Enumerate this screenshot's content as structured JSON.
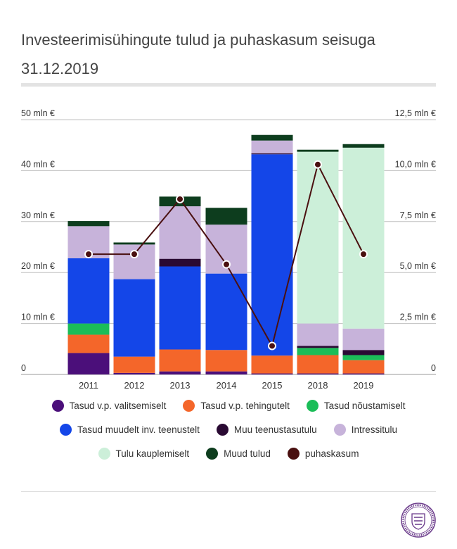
{
  "title": "Investeerimisühingute tulud ja puhaskasum seisuga 31.12.2019",
  "chart_data": {
    "type": "bar",
    "stacked": true,
    "categories": [
      "2011",
      "2012",
      "2013",
      "2014",
      "2015",
      "2018",
      "2019"
    ],
    "y_left": {
      "ticks": [
        "0",
        "10 mln €",
        "20 mln €",
        "30 mln €",
        "40 mln €",
        "50 mln €"
      ],
      "ylim": [
        0,
        50
      ]
    },
    "y_right": {
      "ticks": [
        "0",
        "2,5 mln €",
        "5,0 mln €",
        "7,5 mln €",
        "10,0 mln €",
        "12,5 mln €"
      ],
      "ylim": [
        0,
        12.5
      ]
    },
    "grid": true,
    "legend_position": "bottom",
    "series": [
      {
        "name": "Tasud v.p. valitsemiselt",
        "color": "#4b0f7a",
        "values": [
          4.2,
          0.3,
          0.6,
          0.6,
          0.2,
          0.2,
          0.2
        ]
      },
      {
        "name": "Tasud v.p. tehingutelt",
        "color": "#f4662a",
        "values": [
          3.6,
          3.2,
          4.3,
          4.2,
          3.5,
          3.6,
          2.6
        ]
      },
      {
        "name": "Tasud nõustamiselt",
        "color": "#1bbd58",
        "values": [
          2.2,
          0.0,
          0.0,
          0.0,
          0.0,
          1.4,
          1.0
        ]
      },
      {
        "name": "Tasud muudelt inv. teenustelt",
        "color": "#1446e8",
        "values": [
          12.8,
          15.2,
          16.3,
          15.0,
          39.5,
          0.0,
          0.0
        ]
      },
      {
        "name": "Muu teenustasutulu",
        "color": "#2a0a33",
        "values": [
          0.0,
          0.0,
          1.5,
          0.0,
          0.2,
          0.4,
          1.0
        ]
      },
      {
        "name": "Intressitulu",
        "color": "#c7b3da",
        "values": [
          6.3,
          6.8,
          10.3,
          9.6,
          2.5,
          4.4,
          4.2
        ]
      },
      {
        "name": "Tulu kauplemiselt",
        "color": "#ccefd9",
        "values": [
          0.0,
          0.0,
          0.0,
          0.0,
          0.0,
          33.7,
          35.5
        ]
      },
      {
        "name": "Muud tulud",
        "color": "#0d3d1e",
        "values": [
          1.0,
          0.4,
          1.9,
          3.3,
          1.1,
          0.4,
          0.7
        ]
      }
    ],
    "line_series": {
      "name": "puhaskasum",
      "color": "#4a1010",
      "axis": "right",
      "values": [
        5.9,
        5.9,
        8.6,
        5.4,
        1.4,
        10.3,
        5.9
      ]
    }
  },
  "legend_rows": [
    [
      "Tasud v.p. valitsemiselt",
      "Tasud v.p. tehingutelt",
      "Tasud nõustamiselt"
    ],
    [
      "Tasud muudelt inv. teenustelt",
      "Muu teenustasutulu",
      "Intressitulu"
    ],
    [
      "Tulu kauplemiselt",
      "Muud tulud",
      "puhaskasum"
    ]
  ],
  "legend_colors": {
    "Tasud v.p. valitsemiselt": "#4b0f7a",
    "Tasud v.p. tehingutelt": "#f4662a",
    "Tasud nõustamiselt": "#1bbd58",
    "Tasud muudelt inv. teenustelt": "#1446e8",
    "Muu teenustasutulu": "#2a0a33",
    "Intressitulu": "#c7b3da",
    "Tulu kauplemiselt": "#ccefd9",
    "Muud tulud": "#0d3d1e",
    "puhaskasum": "#4a1010"
  },
  "seal_icon": "financial-supervision-seal-icon"
}
